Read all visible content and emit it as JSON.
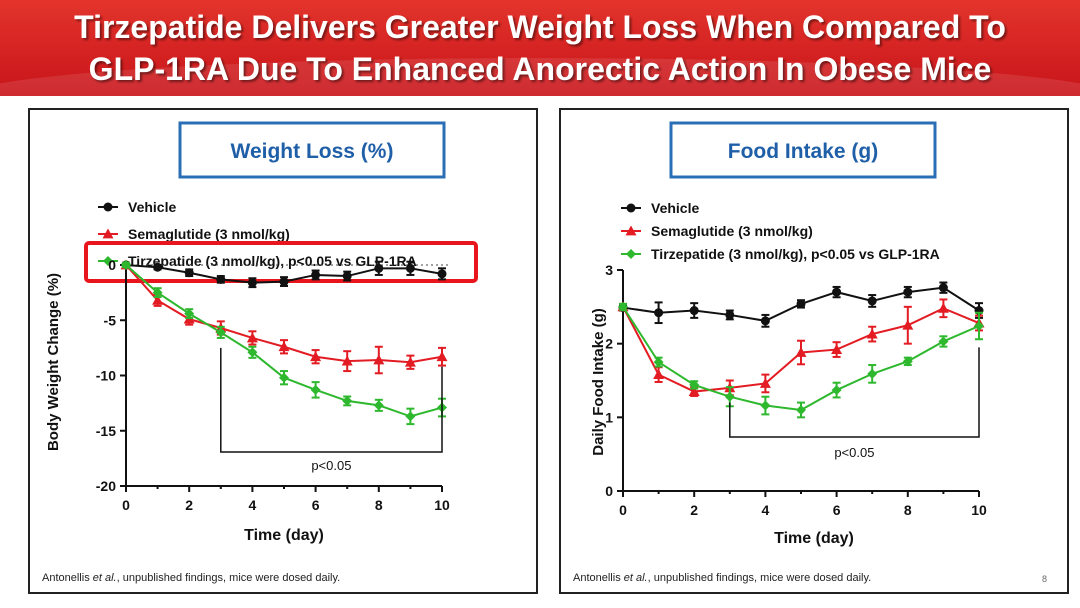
{
  "header": {
    "title_line1": "Tirzepatide Delivers Greater Weight Loss When Compared To",
    "title_line2": "GLP-1RA Due To Enhanced Anorectic Action In Obese Mice"
  },
  "colors": {
    "header_red": "#d3221f",
    "vehicle": "#111111",
    "semaglutide": "#e31b23",
    "tirzepatide": "#2db82d",
    "title_border": "#2a6fb5",
    "title_text": "#1f5fa8",
    "highlight_box": "#e8161c"
  },
  "footnote_left": {
    "prefix": "Antonellis ",
    "etal": "et al.",
    "suffix": ", unpublished findings, mice were dosed daily."
  },
  "footnote_right": {
    "prefix": "Antonellis ",
    "etal": "et al.",
    "suffix": ", unpublished findings, mice were dosed daily."
  },
  "page_number": "8",
  "chart_data": [
    {
      "type": "line",
      "title": "Weight Loss (%)",
      "xlabel": "Time (day)",
      "ylabel": "Body Weight Change (%)",
      "xlim": [
        0,
        10
      ],
      "ylim": [
        -20,
        0
      ],
      "xticks": [
        "0",
        "2",
        "4",
        "6",
        "8",
        "10"
      ],
      "yticks": [
        "0",
        "-5",
        "-10",
        "-15",
        "-20"
      ],
      "reference_line": 0,
      "x": [
        0,
        1,
        2,
        3,
        4,
        5,
        6,
        7,
        8,
        9,
        10
      ],
      "series": [
        {
          "name": "Vehicle",
          "color": "#111111",
          "marker": "circle",
          "values": [
            0,
            -0.2,
            -0.7,
            -1.3,
            -1.6,
            -1.5,
            -0.9,
            -1.0,
            -0.3,
            -0.3,
            -0.8
          ],
          "error": [
            0.2,
            0.2,
            0.3,
            0.3,
            0.4,
            0.4,
            0.4,
            0.4,
            0.6,
            0.6,
            0.5
          ]
        },
        {
          "name": "Semaglutide (3 nmol/kg)",
          "color": "#e31b23",
          "marker": "triangle",
          "values": [
            0,
            -3.2,
            -4.9,
            -5.7,
            -6.6,
            -7.4,
            -8.3,
            -8.7,
            -8.6,
            -8.8,
            -8.3
          ],
          "error": [
            0.2,
            0.5,
            0.5,
            0.6,
            0.6,
            0.6,
            0.6,
            0.9,
            1.2,
            0.6,
            0.8
          ]
        },
        {
          "name": "Tirzepatide (3 nmol/kg), p<0.05 vs GLP-1RA",
          "color": "#2db82d",
          "marker": "diamond",
          "values": [
            0,
            -2.5,
            -4.4,
            -6.1,
            -7.9,
            -10.2,
            -11.3,
            -12.3,
            -12.7,
            -13.7,
            -12.9
          ],
          "error": [
            0.2,
            0.4,
            0.4,
            0.5,
            0.5,
            0.6,
            0.7,
            0.4,
            0.5,
            0.7,
            0.8
          ]
        }
      ],
      "significance": {
        "label": "p<0.05",
        "from_x": 3,
        "to_x": 10
      }
    },
    {
      "type": "line",
      "title": "Food Intake (g)",
      "xlabel": "Time (day)",
      "ylabel": "Daily Food Intake (g)",
      "xlim": [
        0,
        10
      ],
      "ylim": [
        0,
        3
      ],
      "xticks": [
        "0",
        "2",
        "4",
        "6",
        "8",
        "10"
      ],
      "yticks": [
        "0",
        "1",
        "2",
        "3"
      ],
      "x": [
        0,
        1,
        2,
        3,
        4,
        5,
        6,
        7,
        8,
        9,
        10
      ],
      "series": [
        {
          "name": "Vehicle",
          "color": "#111111",
          "marker": "circle",
          "values": [
            2.49,
            2.42,
            2.45,
            2.39,
            2.31,
            2.54,
            2.7,
            2.58,
            2.7,
            2.76,
            2.45
          ],
          "error": [
            0.04,
            0.14,
            0.1,
            0.06,
            0.08,
            0.05,
            0.07,
            0.08,
            0.07,
            0.07,
            0.1
          ]
        },
        {
          "name": "Semaglutide (3 nmol/kg)",
          "color": "#e31b23",
          "marker": "triangle",
          "values": [
            2.5,
            1.58,
            1.35,
            1.4,
            1.46,
            1.88,
            1.92,
            2.13,
            2.25,
            2.48,
            2.28
          ],
          "error": [
            0.04,
            0.1,
            0.06,
            0.1,
            0.12,
            0.16,
            0.1,
            0.1,
            0.25,
            0.12,
            0.1
          ]
        },
        {
          "name": "Tirzepatide (3 nmol/kg), p<0.05 vs GLP-1RA",
          "color": "#2db82d",
          "marker": "diamond",
          "values": [
            2.5,
            1.75,
            1.44,
            1.28,
            1.16,
            1.1,
            1.37,
            1.59,
            1.76,
            2.03,
            2.24
          ],
          "error": [
            0.04,
            0.06,
            0.05,
            0.13,
            0.12,
            0.1,
            0.1,
            0.12,
            0.05,
            0.07,
            0.18
          ]
        }
      ],
      "significance": {
        "label": "p<0.05",
        "from_x": 3,
        "to_x": 10
      }
    }
  ]
}
